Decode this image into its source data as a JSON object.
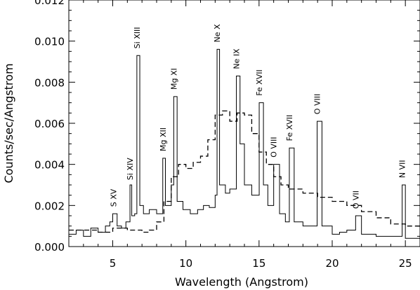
{
  "chart_data": {
    "type": "line",
    "title": "",
    "xlabel": "Wavelength (Angstrom)",
    "ylabel": "Counts/sec/Angstrom",
    "xlim": [
      2,
      26
    ],
    "ylim": [
      0,
      0.012
    ],
    "grid": false,
    "legend": "none",
    "x_ticks": [
      5,
      10,
      15,
      20,
      25
    ],
    "x_tick_labels": [
      "5",
      "10",
      "15",
      "20",
      "25"
    ],
    "y_ticks": [
      0,
      0.002,
      0.004,
      0.006,
      0.008,
      0.01,
      0.012
    ],
    "y_tick_labels": [
      "0.000",
      "0.002",
      "0.004",
      "0.006",
      "0.008",
      "0.010",
      "0.012"
    ],
    "series": [
      {
        "style": "solid",
        "color": "#000000",
        "points": [
          [
            2.0,
            0.0006
          ],
          [
            2.5,
            0.0008
          ],
          [
            3.0,
            0.0005
          ],
          [
            3.5,
            0.0009
          ],
          [
            4.0,
            0.0007
          ],
          [
            4.5,
            0.001
          ],
          [
            4.8,
            0.0012
          ],
          [
            5.0,
            0.0016
          ],
          [
            5.3,
            0.001
          ],
          [
            5.6,
            0.0009
          ],
          [
            5.9,
            0.0012
          ],
          [
            6.18,
            0.003
          ],
          [
            6.3,
            0.0015
          ],
          [
            6.5,
            0.0016
          ],
          [
            6.65,
            0.0093
          ],
          [
            6.85,
            0.002
          ],
          [
            7.1,
            0.0016
          ],
          [
            7.5,
            0.0018
          ],
          [
            8.0,
            0.0016
          ],
          [
            8.42,
            0.0043
          ],
          [
            8.6,
            0.002
          ],
          [
            9.0,
            0.003
          ],
          [
            9.17,
            0.0073
          ],
          [
            9.4,
            0.0022
          ],
          [
            9.8,
            0.0018
          ],
          [
            10.3,
            0.0016
          ],
          [
            10.8,
            0.0018
          ],
          [
            11.2,
            0.002
          ],
          [
            11.6,
            0.0019
          ],
          [
            12.0,
            0.0025
          ],
          [
            12.13,
            0.0096
          ],
          [
            12.3,
            0.003
          ],
          [
            12.7,
            0.0026
          ],
          [
            13.0,
            0.0028
          ],
          [
            13.45,
            0.0083
          ],
          [
            13.7,
            0.005
          ],
          [
            14.0,
            0.003
          ],
          [
            14.5,
            0.0025
          ],
          [
            15.01,
            0.007
          ],
          [
            15.3,
            0.003
          ],
          [
            15.6,
            0.002
          ],
          [
            16.0,
            0.004
          ],
          [
            16.4,
            0.0016
          ],
          [
            16.8,
            0.0012
          ],
          [
            17.07,
            0.0048
          ],
          [
            17.4,
            0.0012
          ],
          [
            18.0,
            0.001
          ],
          [
            18.6,
            0.001
          ],
          [
            18.97,
            0.0061
          ],
          [
            19.3,
            0.001
          ],
          [
            20.0,
            0.0006
          ],
          [
            20.5,
            0.0007
          ],
          [
            21.0,
            0.0008
          ],
          [
            21.6,
            0.0015
          ],
          [
            22.0,
            0.0006
          ],
          [
            23.0,
            0.0005
          ],
          [
            24.0,
            0.0005
          ],
          [
            24.78,
            0.003
          ],
          [
            25.0,
            0.0004
          ],
          [
            26.0,
            0.0001
          ]
        ]
      },
      {
        "style": "dashed",
        "color": "#000000",
        "points": [
          [
            2.0,
            0.0008
          ],
          [
            3.0,
            0.0008
          ],
          [
            4.0,
            0.0007
          ],
          [
            5.0,
            0.0009
          ],
          [
            6.0,
            0.0008
          ],
          [
            7.0,
            0.0007
          ],
          [
            7.5,
            0.0008
          ],
          [
            8.0,
            0.0012
          ],
          [
            8.5,
            0.0022
          ],
          [
            9.0,
            0.0034
          ],
          [
            9.5,
            0.004
          ],
          [
            10.0,
            0.0038
          ],
          [
            10.5,
            0.0041
          ],
          [
            11.0,
            0.0044
          ],
          [
            11.5,
            0.0052
          ],
          [
            12.0,
            0.0064
          ],
          [
            12.5,
            0.0066
          ],
          [
            13.0,
            0.0061
          ],
          [
            13.5,
            0.0065
          ],
          [
            14.0,
            0.0064
          ],
          [
            14.5,
            0.0055
          ],
          [
            15.0,
            0.0046
          ],
          [
            15.5,
            0.004
          ],
          [
            16.0,
            0.0034
          ],
          [
            16.5,
            0.003
          ],
          [
            17.0,
            0.0028
          ],
          [
            18.0,
            0.0026
          ],
          [
            19.0,
            0.0024
          ],
          [
            20.0,
            0.0022
          ],
          [
            21.0,
            0.002
          ],
          [
            22.0,
            0.0017
          ],
          [
            23.0,
            0.0014
          ],
          [
            24.0,
            0.0011
          ],
          [
            25.0,
            0.001
          ],
          [
            26.0,
            0.0009
          ]
        ]
      }
    ],
    "annotations": [
      {
        "text": "S XV",
        "x": 5.04,
        "y": 0.0018
      },
      {
        "text": "Si XIV",
        "x": 6.18,
        "y": 0.0031
      },
      {
        "text": "Si XIII",
        "x": 6.65,
        "y": 0.0095
      },
      {
        "text": "Mg XII",
        "x": 8.42,
        "y": 0.0045
      },
      {
        "text": "Mg XI",
        "x": 9.17,
        "y": 0.0075
      },
      {
        "text": "Ne X",
        "x": 12.13,
        "y": 0.0098
      },
      {
        "text": "Ne IX",
        "x": 13.45,
        "y": 0.0085
      },
      {
        "text": "Fe XVII",
        "x": 15.01,
        "y": 0.0072
      },
      {
        "text": "O VIII",
        "x": 16.0,
        "y": 0.0042
      },
      {
        "text": "Fe XVII",
        "x": 17.07,
        "y": 0.005
      },
      {
        "text": "O VIII",
        "x": 18.97,
        "y": 0.0063
      },
      {
        "text": "O VII",
        "x": 21.6,
        "y": 0.0017
      },
      {
        "text": "N VII",
        "x": 24.78,
        "y": 0.0032
      }
    ]
  }
}
